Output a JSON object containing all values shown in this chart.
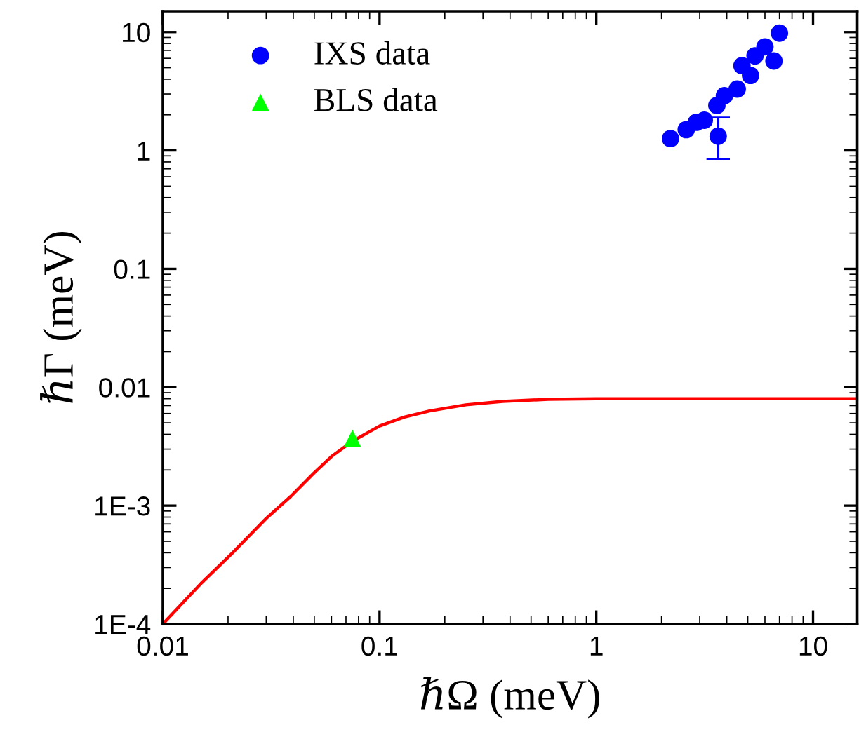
{
  "chart_data": {
    "type": "scatter",
    "xlabel": "ℏΩ (meV)",
    "ylabel": "ℏΓ (meV)",
    "log": "xy",
    "xlim": [
      0.01,
      16
    ],
    "ylim": [
      0.0001,
      15
    ],
    "xticks": [
      0.01,
      0.1,
      1,
      10
    ],
    "yticks": [
      {
        "value": 0.0001,
        "label": "1E-4"
      },
      {
        "value": 0.001,
        "label": "1E-3"
      },
      0.01,
      0.1,
      1,
      10
    ],
    "grid": false,
    "legend": "top left",
    "series": [
      {
        "type": "line",
        "color": "#ff0000",
        "marker": "none",
        "line_style": "solid",
        "x": [
          0.01,
          0.015,
          0.021,
          0.03,
          0.039,
          0.05,
          0.06,
          0.075,
          0.1,
          0.13,
          0.17,
          0.25,
          0.37,
          0.6,
          1,
          3,
          16
        ],
        "values": [
          0.0001,
          0.00022,
          0.0004,
          0.00078,
          0.0012,
          0.0019,
          0.0026,
          0.0035,
          0.0047,
          0.0056,
          0.0063,
          0.0071,
          0.0076,
          0.0079,
          0.008,
          0.008,
          0.008
        ]
      },
      {
        "name": "IXS data",
        "color": "#0000ff",
        "marker": "circle",
        "x": [
          2.2,
          2.6,
          2.9,
          3.15,
          3.65,
          3.6,
          3.9,
          4.47,
          4.7,
          5.15,
          5.4,
          6.0,
          6.6,
          7.0
        ],
        "values": [
          1.26,
          1.5,
          1.73,
          1.8,
          1.32,
          2.4,
          2.9,
          3.3,
          5.2,
          4.3,
          6.3,
          7.5,
          5.7,
          9.8
        ],
        "errors": [
          null,
          null,
          null,
          null,
          [
            0.85,
            1.9
          ],
          null,
          null,
          null,
          null,
          null,
          null,
          null,
          null,
          null
        ]
      },
      {
        "name": "BLS data",
        "type": "scatter",
        "color": "#00ff00",
        "marker": "triangle",
        "x": [
          0.075
        ],
        "values": [
          0.0037
        ]
      }
    ]
  }
}
